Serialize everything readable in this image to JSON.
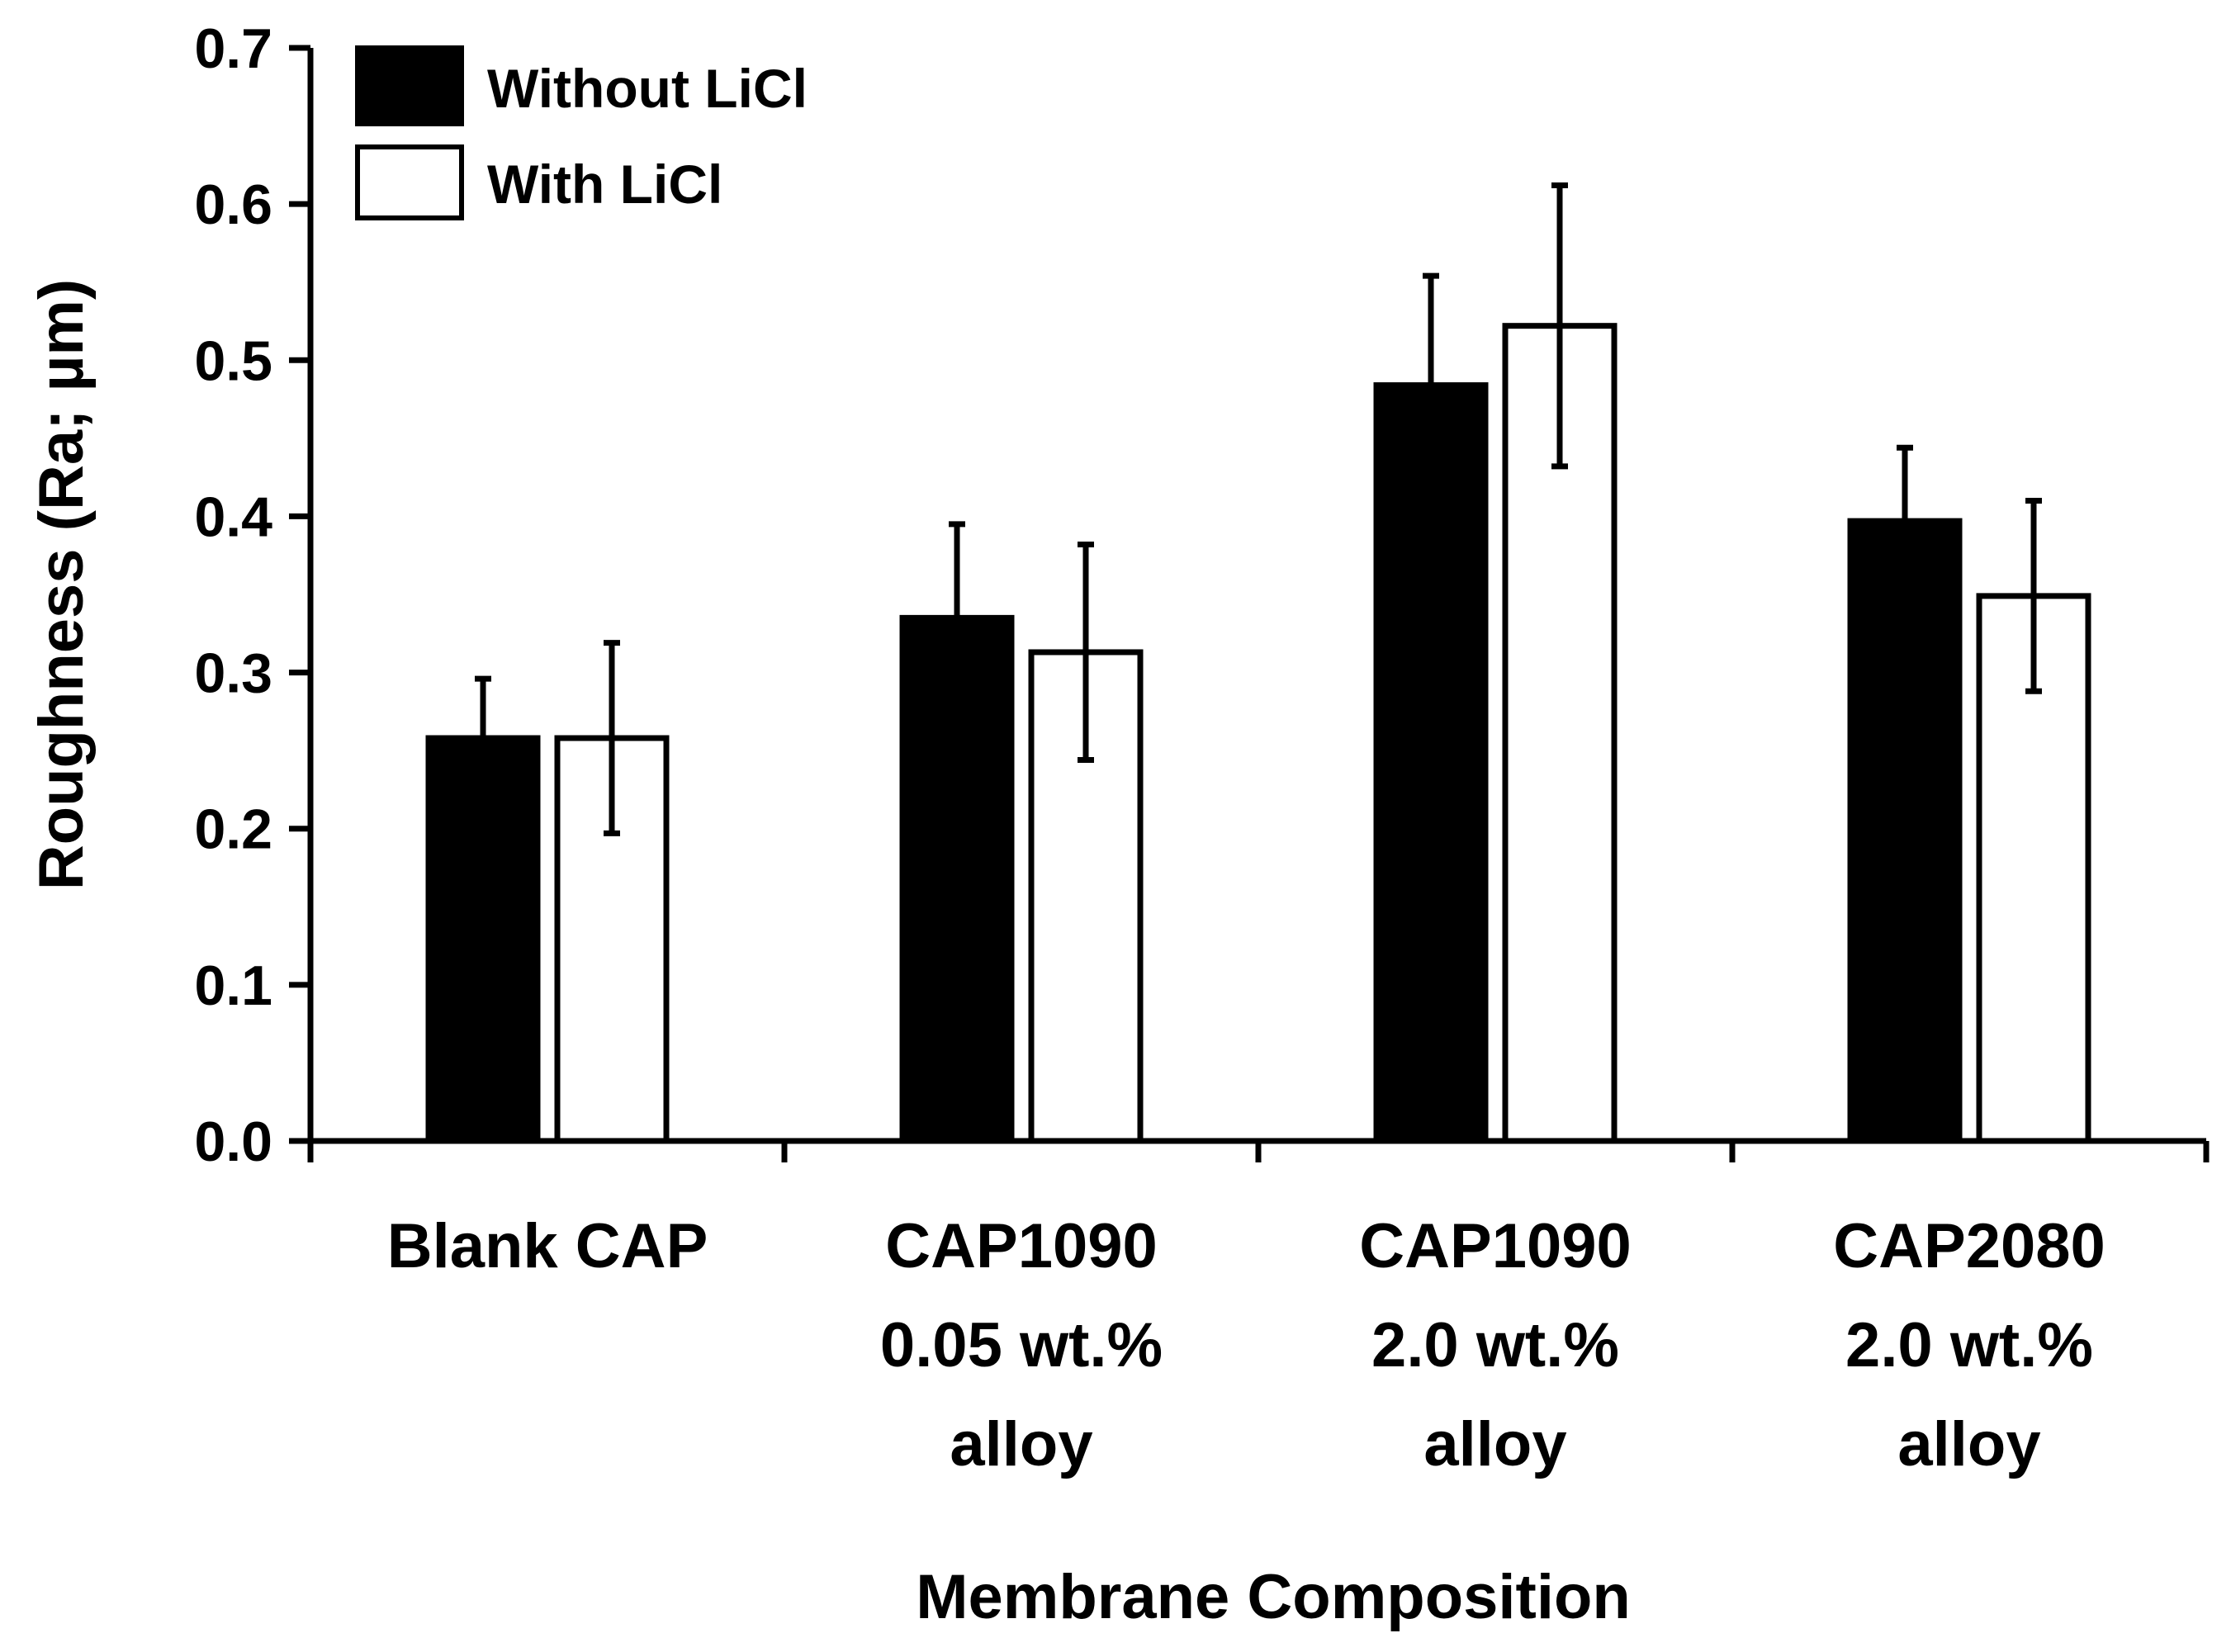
{
  "chart_data": {
    "type": "bar",
    "title": "",
    "xlabel": "Membrane Composition",
    "ylabel": "Roughness  (Ra; µm)",
    "ylim": [
      0,
      0.7
    ],
    "yticks": [
      "0.0",
      "0.1",
      "0.2",
      "0.3",
      "0.4",
      "0.5",
      "0.6",
      "0.7"
    ],
    "grid": false,
    "legend_position": "top-left",
    "categories": [
      [
        "Blank CAP"
      ],
      [
        "CAP1090",
        "0.05 wt.%",
        "alloy"
      ],
      [
        "CAP1090",
        "2.0 wt.%",
        "alloy"
      ],
      [
        "CAP2080",
        "2.0 wt.%",
        "alloy"
      ]
    ],
    "series": [
      {
        "name": "Without LiCl",
        "fill": "#000000",
        "values": [
          0.258,
          0.335,
          0.484,
          0.397
        ],
        "errors": [
          0.038,
          0.06,
          0.07,
          0.047
        ]
      },
      {
        "name": "With LiCl",
        "fill": "#ffffff",
        "values": [
          0.258,
          0.313,
          0.522,
          0.349
        ],
        "errors": [
          0.061,
          0.069,
          0.09,
          0.061
        ]
      }
    ]
  }
}
